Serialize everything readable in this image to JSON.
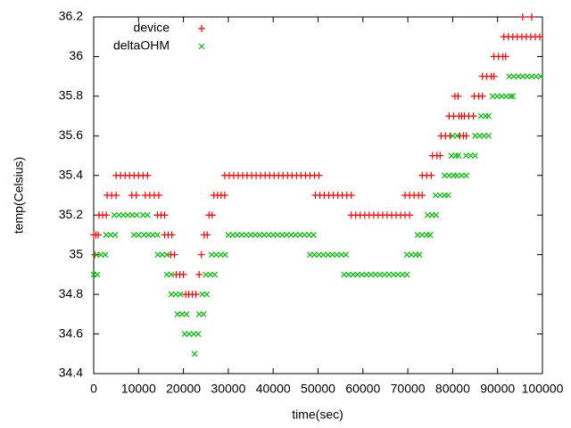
{
  "chart_data": {
    "type": "scatter",
    "xlabel": "time(sec)",
    "ylabel": "temp(Celsius)",
    "xlim": [
      0,
      100000
    ],
    "ylim": [
      34.4,
      36.2
    ],
    "xticks": [
      0,
      10000,
      20000,
      30000,
      40000,
      50000,
      60000,
      70000,
      80000,
      90000,
      100000
    ],
    "yticks": [
      34.4,
      34.6,
      34.8,
      35,
      35.2,
      35.4,
      35.6,
      35.8,
      36,
      36.2
    ],
    "legend": "top-left",
    "series": [
      {
        "name": "device",
        "color": "#ff0000",
        "marker": "plus",
        "x": [
          0,
          500,
          1000,
          300,
          1200,
          2000,
          2800,
          3000,
          4000,
          5000,
          5000,
          6000,
          7000,
          8000,
          9000,
          10000,
          11000,
          12000,
          8500,
          9500,
          11500,
          12500,
          13500,
          14500,
          14200,
          15000,
          15800,
          15800,
          16600,
          17400,
          17200,
          18000,
          18400,
          19200,
          20000,
          20500,
          21200,
          22000,
          22800,
          23500,
          24000,
          24600,
          25300,
          25700,
          26400,
          26800,
          27600,
          28400,
          29200,
          29200,
          30200,
          31200,
          32200,
          33200,
          34200,
          35200,
          36200,
          37200,
          38200,
          39200,
          40200,
          41200,
          42200,
          43200,
          44200,
          45200,
          46200,
          47200,
          48200,
          49200,
          50200,
          49400,
          50400,
          51400,
          52400,
          53400,
          54400,
          55400,
          56400,
          57400,
          57400,
          58400,
          59400,
          60400,
          61400,
          62400,
          63400,
          64400,
          65400,
          66400,
          67400,
          68400,
          69400,
          70400,
          69400,
          70400,
          71400,
          72400,
          73200,
          73200,
          74200,
          75200,
          75500,
          76500,
          77200,
          77400,
          78400,
          79400,
          79200,
          80200,
          82600,
          83600,
          84600,
          80500,
          81200,
          81400,
          82000,
          81600,
          82400,
          83000,
          84800,
          85800,
          86600,
          86600,
          87600,
          88600,
          89200,
          89200,
          90200,
          91200,
          91800,
          91400,
          92400,
          93400,
          94400,
          95400,
          96400,
          97400,
          98400,
          99400,
          95600,
          97600
        ],
        "values": [
          35.1,
          35.1,
          35.1,
          35,
          35.2,
          35.2,
          35.2,
          35.3,
          35.3,
          35.3,
          35.4,
          35.4,
          35.4,
          35.4,
          35.4,
          35.4,
          35.4,
          35.4,
          35.3,
          35.3,
          35.3,
          35.3,
          35.3,
          35.3,
          35.2,
          35.2,
          35.2,
          35.1,
          35.1,
          35.1,
          35,
          35,
          34.9,
          34.9,
          34.9,
          34.8,
          34.8,
          34.8,
          34.8,
          34.9,
          35,
          35.1,
          35.1,
          35.2,
          35.2,
          35.3,
          35.3,
          35.3,
          35.3,
          35.4,
          35.4,
          35.4,
          35.4,
          35.4,
          35.4,
          35.4,
          35.4,
          35.4,
          35.4,
          35.4,
          35.4,
          35.4,
          35.4,
          35.4,
          35.4,
          35.4,
          35.4,
          35.4,
          35.4,
          35.4,
          35.4,
          35.3,
          35.3,
          35.3,
          35.3,
          35.3,
          35.3,
          35.3,
          35.3,
          35.3,
          35.2,
          35.2,
          35.2,
          35.2,
          35.2,
          35.2,
          35.2,
          35.2,
          35.2,
          35.2,
          35.2,
          35.2,
          35.2,
          35.2,
          35.3,
          35.3,
          35.3,
          35.3,
          35.3,
          35.4,
          35.4,
          35.4,
          35.5,
          35.5,
          35.5,
          35.6,
          35.6,
          35.6,
          35.7,
          35.7,
          35.7,
          35.7,
          35.7,
          35.8,
          35.8,
          35.7,
          35.7,
          35.6,
          35.6,
          35.6,
          35.8,
          35.8,
          35.8,
          35.9,
          35.9,
          35.9,
          35.9,
          36,
          36,
          36,
          36,
          36.1,
          36.1,
          36.1,
          36.1,
          36.1,
          36.1,
          36.1,
          36.1,
          36.1,
          36.2,
          36.2
        ]
      },
      {
        "name": "deltaOHM",
        "color": "#00c000",
        "marker": "cross",
        "x": [
          0,
          800,
          600,
          1600,
          2600,
          2800,
          3800,
          4800,
          4600,
          5600,
          6600,
          7600,
          8600,
          9600,
          9000,
          10000,
          11000,
          12000,
          11200,
          12200,
          13200,
          14200,
          14300,
          15300,
          16300,
          16300,
          17300,
          17300,
          18300,
          19300,
          18700,
          19700,
          20700,
          20300,
          21300,
          22300,
          23300,
          22500,
          23500,
          24500,
          24200,
          25200,
          25000,
          26000,
          27000,
          26300,
          27300,
          28300,
          29300,
          30000,
          31000,
          32000,
          33000,
          34000,
          35000,
          36000,
          37000,
          38000,
          39000,
          40000,
          41000,
          42000,
          43000,
          44000,
          45000,
          46000,
          47000,
          48000,
          49000,
          48200,
          49200,
          50200,
          51200,
          52200,
          53200,
          54200,
          55200,
          56200,
          55800,
          56800,
          57800,
          58800,
          59800,
          60800,
          61800,
          62800,
          63800,
          64800,
          65800,
          66800,
          67800,
          68800,
          69800,
          69800,
          70800,
          71800,
          72600,
          72200,
          73200,
          74200,
          75000,
          74400,
          75400,
          76300,
          76200,
          77200,
          78200,
          79000,
          78200,
          79200,
          80200,
          79700,
          80700,
          81300,
          80000,
          81000,
          81000,
          82000,
          83000,
          83000,
          84000,
          85000,
          85000,
          86000,
          87000,
          88000,
          86300,
          87300,
          88000,
          88900,
          89900,
          90900,
          91900,
          92900,
          93400,
          92600,
          93600,
          94600,
          95600,
          96600,
          97600,
          98600,
          99600
        ],
        "values": [
          34.9,
          34.9,
          35,
          35,
          35,
          35.1,
          35.1,
          35.1,
          35.2,
          35.2,
          35.2,
          35.2,
          35.2,
          35.2,
          35.1,
          35.1,
          35.2,
          35.2,
          35.1,
          35.1,
          35.1,
          35.1,
          35,
          35,
          35,
          34.9,
          34.9,
          34.8,
          34.8,
          34.8,
          34.7,
          34.7,
          34.7,
          34.6,
          34.6,
          34.6,
          34.6,
          34.5,
          34.7,
          34.7,
          34.8,
          34.8,
          34.9,
          34.9,
          34.9,
          35,
          35,
          35,
          35,
          35.1,
          35.1,
          35.1,
          35.1,
          35.1,
          35.1,
          35.1,
          35.1,
          35.1,
          35.1,
          35.1,
          35.1,
          35.1,
          35.1,
          35.1,
          35.1,
          35.1,
          35.1,
          35.1,
          35.1,
          35,
          35,
          35,
          35,
          35,
          35,
          35,
          35,
          35,
          34.9,
          34.9,
          34.9,
          34.9,
          34.9,
          34.9,
          34.9,
          34.9,
          34.9,
          34.9,
          34.9,
          34.9,
          34.9,
          34.9,
          34.9,
          35,
          35,
          35,
          35,
          35.1,
          35.1,
          35.1,
          35.1,
          35.2,
          35.2,
          35.2,
          35.3,
          35.3,
          35.3,
          35.3,
          35.4,
          35.4,
          35.4,
          35.5,
          35.5,
          35.5,
          35.6,
          35.6,
          35.4,
          35.4,
          35.4,
          35.5,
          35.5,
          35.5,
          35.6,
          35.6,
          35.6,
          35.6,
          35.7,
          35.7,
          35.7,
          35.8,
          35.8,
          35.8,
          35.8,
          35.8,
          35.8,
          35.9,
          35.9,
          35.9,
          35.9,
          35.9,
          35.9,
          35.9,
          35.9
        ]
      }
    ]
  }
}
